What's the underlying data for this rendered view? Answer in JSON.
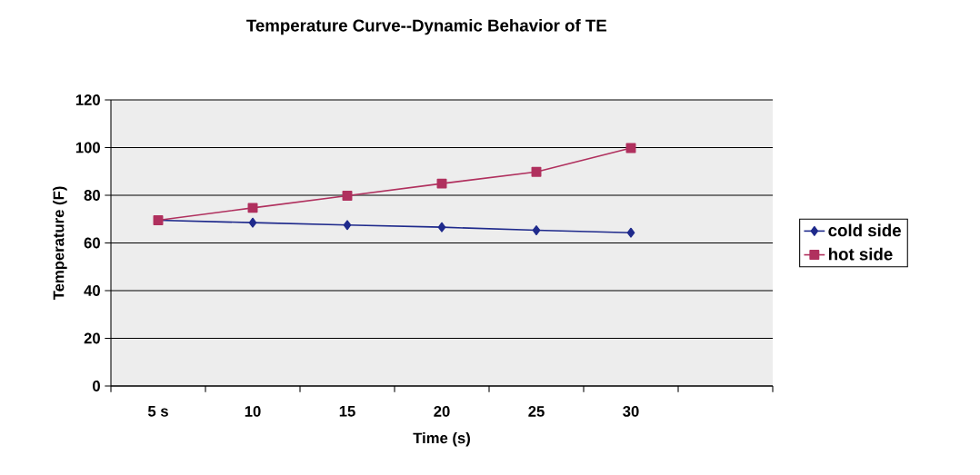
{
  "chart_data": {
    "type": "line",
    "title": "Temperature Curve--Dynamic Behavior of TE",
    "xlabel": "Time (s)",
    "ylabel": "Temperature (F)",
    "categories": [
      "5 s",
      "10",
      "15",
      "20",
      "25",
      "30",
      null
    ],
    "series": [
      {
        "name": "cold side",
        "color": "#1f2a8c",
        "marker": "diamond",
        "values": [
          69.5,
          68.5,
          67.5,
          66.6,
          65.3,
          64.3,
          null
        ]
      },
      {
        "name": "hot side",
        "color": "#b0305e",
        "marker": "square",
        "values": [
          69.5,
          74.7,
          79.8,
          84.9,
          89.8,
          99.8,
          null
        ]
      }
    ],
    "ylim": [
      0,
      120
    ],
    "yticks": [
      0,
      20,
      40,
      60,
      80,
      100,
      120
    ],
    "grid": "y",
    "legend": "right"
  }
}
